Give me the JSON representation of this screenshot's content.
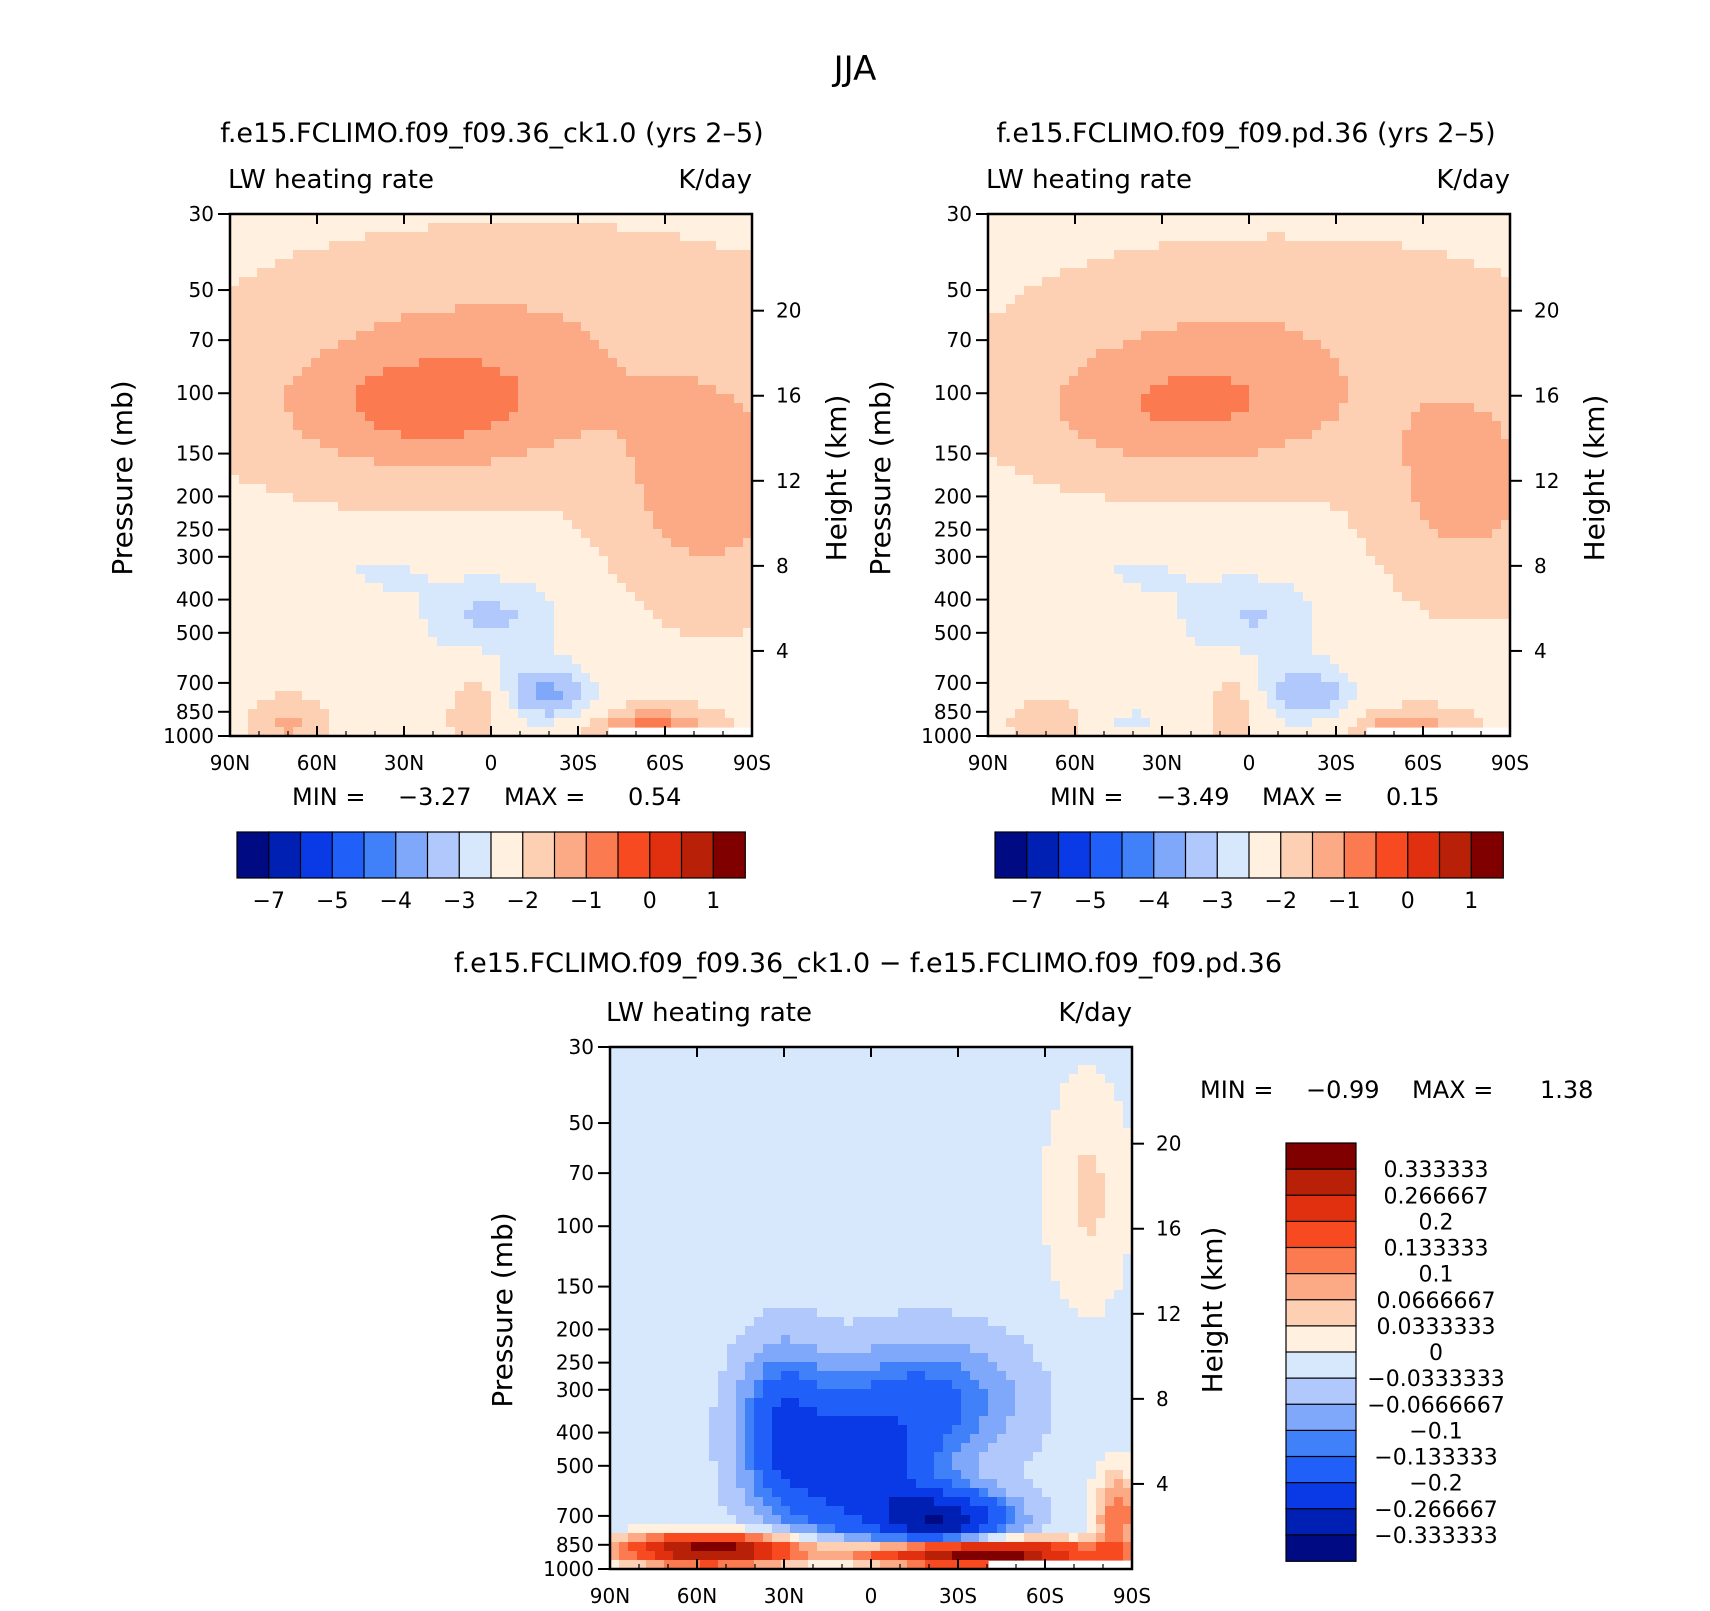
{
  "figure": {
    "title": "JJA"
  },
  "chart_data": [
    {
      "type": "heatmap",
      "title": "f.e15.FCLIMO.f09_f09.36_ck1.0 (yrs 2–5)",
      "left_label": "LW heating rate",
      "right_label": "K/day",
      "xlabel": "",
      "ylabel": "Pressure (mb)",
      "y2label": "Height (km)",
      "x_ticks": [
        "90N",
        "60N",
        "30N",
        "0",
        "30S",
        "60S",
        "90S"
      ],
      "pressure_ticks": [
        30,
        50,
        70,
        100,
        150,
        200,
        250,
        300,
        400,
        500,
        700,
        850,
        1000
      ],
      "height_ticks": [
        20,
        16,
        12,
        8,
        4
      ],
      "min_label": "MIN =",
      "min_value": "−3.27",
      "max_label": "MAX =",
      "max_value": "0.54",
      "colorbar_ticks": [
        "−7",
        "−5",
        "−4",
        "−3",
        "−2",
        "−1",
        "0",
        "1"
      ],
      "colors": [
        "#000a82",
        "#0020b4",
        "#0a3ae6",
        "#2060f8",
        "#4080f8",
        "#80a8fa",
        "#b0c8fc",
        "#d8e8fc",
        "#fff0e0",
        "#fdd0b4",
        "#fcaa86",
        "#fb7a50",
        "#f84a20",
        "#e03010",
        "#b82008",
        "#800000"
      ]
    },
    {
      "type": "heatmap",
      "title": "f.e15.FCLIMO.f09_f09.pd.36 (yrs 2–5)",
      "left_label": "LW heating rate",
      "right_label": "K/day",
      "xlabel": "",
      "ylabel": "Pressure (mb)",
      "y2label": "Height (km)",
      "x_ticks": [
        "90N",
        "60N",
        "30N",
        "0",
        "30S",
        "60S",
        "90S"
      ],
      "pressure_ticks": [
        30,
        50,
        70,
        100,
        150,
        200,
        250,
        300,
        400,
        500,
        700,
        850,
        1000
      ],
      "height_ticks": [
        20,
        16,
        12,
        8,
        4
      ],
      "min_label": "MIN =",
      "min_value": "−3.49",
      "max_label": "MAX =",
      "max_value": "0.15",
      "colorbar_ticks": [
        "−7",
        "−5",
        "−4",
        "−3",
        "−2",
        "−1",
        "0",
        "1"
      ],
      "colors": [
        "#000a82",
        "#0020b4",
        "#0a3ae6",
        "#2060f8",
        "#4080f8",
        "#80a8fa",
        "#b0c8fc",
        "#d8e8fc",
        "#fff0e0",
        "#fdd0b4",
        "#fcaa86",
        "#fb7a50",
        "#f84a20",
        "#e03010",
        "#b82008",
        "#800000"
      ]
    },
    {
      "type": "heatmap",
      "title": "f.e15.FCLIMO.f09_f09.36_ck1.0 − f.e15.FCLIMO.f09_f09.pd.36",
      "left_label": "LW heating rate",
      "right_label": "K/day",
      "xlabel": "",
      "ylabel": "Pressure (mb)",
      "y2label": "Height (km)",
      "x_ticks": [
        "90N",
        "60N",
        "30N",
        "0",
        "30S",
        "60S",
        "90S"
      ],
      "pressure_ticks": [
        30,
        50,
        70,
        100,
        150,
        200,
        250,
        300,
        400,
        500,
        700,
        850,
        1000
      ],
      "height_ticks": [
        20,
        16,
        12,
        8,
        4
      ],
      "min_label": "MIN =",
      "min_value": "−0.99",
      "max_label": "MAX =",
      "max_value": "1.38",
      "colorbar_labels": [
        "0.333333",
        "0.266667",
        "0.2",
        "0.133333",
        "0.1",
        "0.0666667",
        "0.0333333",
        "0",
        "−0.0333333",
        "−0.0666667",
        "−0.1",
        "−0.133333",
        "−0.2",
        "−0.266667",
        "−0.333333"
      ],
      "colors": [
        "#800000",
        "#b82008",
        "#e03010",
        "#f84a20",
        "#fb7a50",
        "#fcaa86",
        "#fdd0b4",
        "#fff0e0",
        "#d8e8fc",
        "#b0c8fc",
        "#80a8fa",
        "#4080f8",
        "#2060f8",
        "#0a3ae6",
        "#0020b4",
        "#000a82"
      ]
    }
  ]
}
